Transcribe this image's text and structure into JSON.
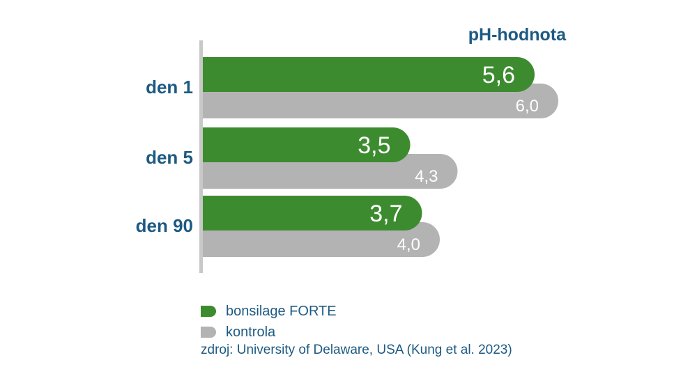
{
  "chart_data": {
    "type": "bar",
    "orientation": "horizontal",
    "title": "pH-hodnota",
    "categories": [
      "den 1",
      "den 5",
      "den 90"
    ],
    "series": [
      {
        "name": "bonsilage FORTE",
        "values": [
          5.6,
          3.5,
          3.7
        ],
        "labels": [
          "5,6",
          "3,5",
          "3,7"
        ],
        "color": "#3d8b2f"
      },
      {
        "name": "kontrola",
        "values": [
          6.0,
          4.3,
          4.0
        ],
        "labels": [
          "6,0",
          "4,3",
          "4,0"
        ],
        "color": "#b3b3b3"
      }
    ],
    "xlim": [
      0,
      6.2
    ],
    "grid": false,
    "legend_position": "bottom-left"
  },
  "legend": {
    "items": [
      {
        "label": "bonsilage FORTE",
        "color": "#3d8b2f"
      },
      {
        "label": "kontrola",
        "color": "#b3b3b3"
      }
    ]
  },
  "source": "zdroj: University of Delaware, USA (Kung et al. 2023)",
  "colors": {
    "text": "#1d5a82",
    "axis": "#c8c8c8"
  }
}
